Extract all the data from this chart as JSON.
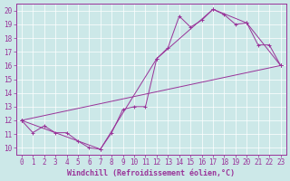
{
  "bg_color": "#cce8e8",
  "grid_color": "#ffffff",
  "line_color": "#993399",
  "xlabel": "Windchill (Refroidissement éolien,°C)",
  "xlim": [
    -0.5,
    23.5
  ],
  "ylim": [
    9.5,
    20.5
  ],
  "xticks": [
    0,
    1,
    2,
    3,
    4,
    5,
    6,
    7,
    8,
    9,
    10,
    11,
    12,
    13,
    14,
    15,
    16,
    17,
    18,
    19,
    20,
    21,
    22,
    23
  ],
  "yticks": [
    10,
    11,
    12,
    13,
    14,
    15,
    16,
    17,
    18,
    19,
    20
  ],
  "series1_x": [
    0,
    1,
    2,
    3,
    4,
    5,
    6,
    7,
    8,
    9,
    10,
    11,
    12,
    13,
    14,
    15,
    16,
    17,
    18,
    19,
    20,
    21,
    22,
    23
  ],
  "series1_y": [
    12.0,
    11.1,
    11.6,
    11.1,
    11.1,
    10.5,
    10.0,
    9.9,
    11.1,
    12.8,
    13.0,
    13.0,
    16.5,
    17.3,
    19.6,
    18.8,
    19.3,
    20.1,
    19.7,
    19.0,
    19.1,
    17.5,
    17.5,
    16.0
  ],
  "series2_x": [
    0,
    7,
    12,
    17,
    20,
    23
  ],
  "series2_y": [
    12.0,
    9.9,
    16.5,
    20.1,
    19.1,
    16.0
  ],
  "series3_x": [
    0,
    23
  ],
  "series3_y": [
    12.0,
    16.0
  ],
  "xlabel_fontsize": 6,
  "tick_fontsize": 5.5
}
